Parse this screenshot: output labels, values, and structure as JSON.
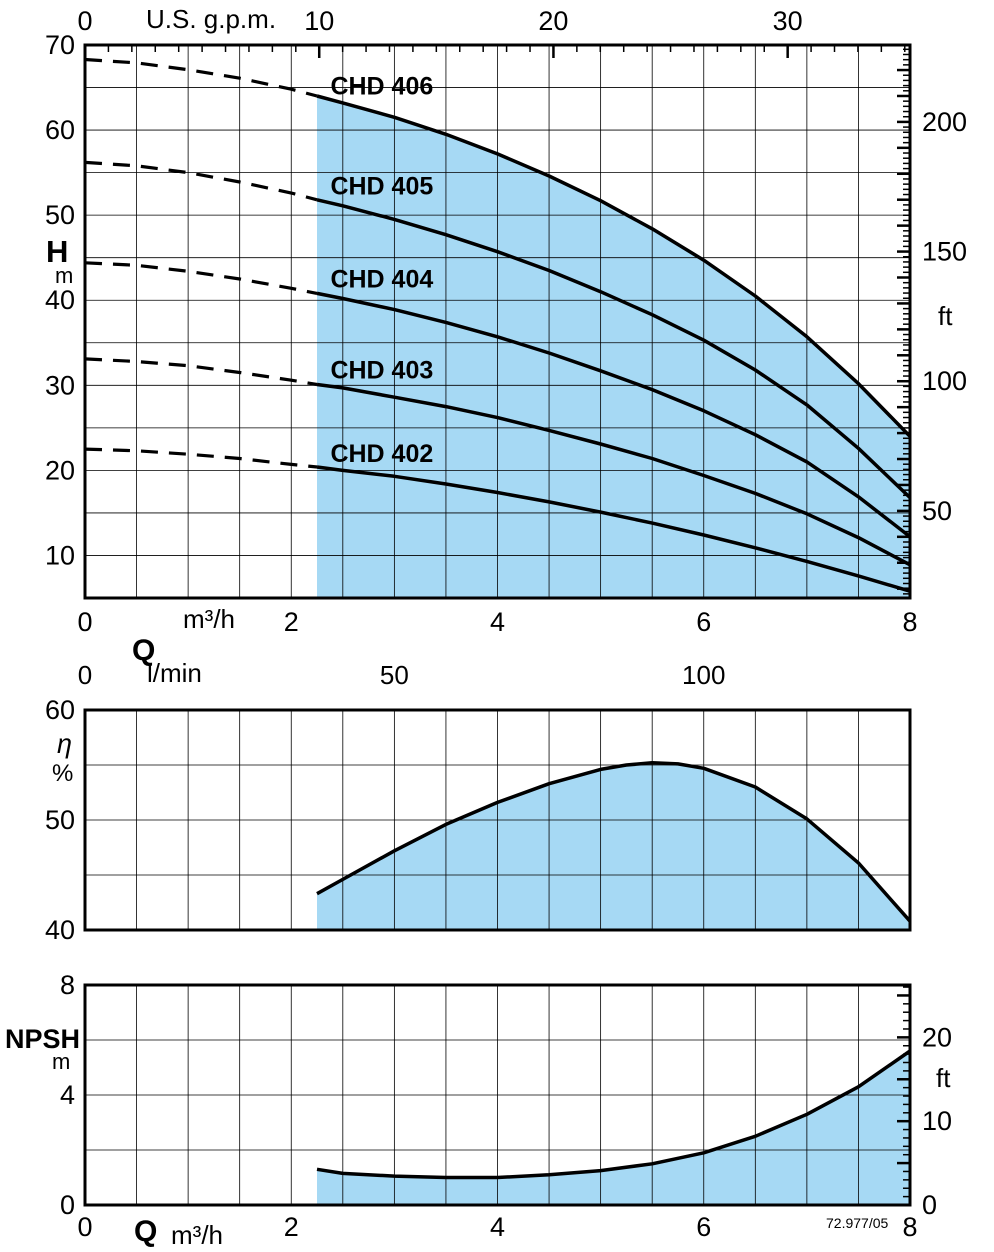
{
  "colors": {
    "fill": "#a6d9f4",
    "line": "#000000"
  },
  "labels": {
    "gpm": "U.S. g.p.m.",
    "head": "H",
    "head_unit": "m",
    "feet": "ft",
    "flow_unit": "m³/h",
    "q": "Q",
    "lmin": "l/min",
    "eta": "η",
    "eta_unit": "%",
    "npsh": "NPSH",
    "npsh_unit": "m",
    "feet2": "ft",
    "q2": "Q",
    "flow_unit2": "m³/h",
    "note": "72.977/05"
  },
  "chart_data": [
    {
      "type": "line",
      "title": "H-Q characteristic curves",
      "xlabel": "Q (m³/h)",
      "ylabel": "H (m)",
      "x": {
        "range": [
          0,
          8
        ],
        "ticks": [
          0,
          2,
          4,
          6,
          8
        ],
        "grid_step": 0.5
      },
      "y": {
        "range": [
          5,
          70
        ],
        "ticks": [
          10,
          20,
          30,
          40,
          50,
          60,
          70
        ],
        "grid_step": 5
      },
      "x_top": {
        "unit": "U.S. g.p.m.",
        "ticks": [
          0,
          10,
          20,
          30
        ],
        "minor_step": 1,
        "major_step": 10,
        "per_m3h": 4.4029
      },
      "x_lmin": {
        "unit": "l/min",
        "ticks": [
          0,
          50,
          100
        ],
        "per_m3h": 16.6667
      },
      "y_right": {
        "unit": "ft",
        "ticks": [
          50,
          100,
          150,
          200
        ],
        "minor_step": 2,
        "major_step": 10,
        "m_per_ft": 0.3048
      },
      "dash_until": 2.25,
      "fill_series": "CHD 406",
      "series": [
        {
          "name": "CHD 406",
          "label_pos": [
            2.38,
            64.2
          ],
          "points": [
            [
              0,
              68.3
            ],
            [
              0.5,
              67.9
            ],
            [
              1,
              67.1
            ],
            [
              1.5,
              66.1
            ],
            [
              2,
              64.8
            ],
            [
              2.25,
              64.0
            ],
            [
              2.5,
              63.2
            ],
            [
              3,
              61.5
            ],
            [
              3.5,
              59.5
            ],
            [
              4,
              57.2
            ],
            [
              4.5,
              54.6
            ],
            [
              5,
              51.7
            ],
            [
              5.5,
              48.4
            ],
            [
              6,
              44.7
            ],
            [
              6.5,
              40.5
            ],
            [
              7,
              35.7
            ],
            [
              7.5,
              30.2
            ],
            [
              8,
              24.0
            ]
          ]
        },
        {
          "name": "CHD 405",
          "label_pos": [
            2.38,
            52.4
          ],
          "points": [
            [
              0,
              56.2
            ],
            [
              0.5,
              55.8
            ],
            [
              1,
              55.0
            ],
            [
              1.5,
              53.9
            ],
            [
              2,
              52.6
            ],
            [
              2.25,
              51.8
            ],
            [
              2.5,
              51.1
            ],
            [
              3,
              49.5
            ],
            [
              3.5,
              47.7
            ],
            [
              4,
              45.7
            ],
            [
              4.5,
              43.5
            ],
            [
              5,
              41.0
            ],
            [
              5.5,
              38.3
            ],
            [
              6,
              35.3
            ],
            [
              6.5,
              31.8
            ],
            [
              7,
              27.7
            ],
            [
              7.5,
              22.6
            ],
            [
              8,
              16.8
            ]
          ]
        },
        {
          "name": "CHD 404",
          "label_pos": [
            2.38,
            41.5
          ],
          "points": [
            [
              0,
              44.4
            ],
            [
              0.5,
              44.1
            ],
            [
              1,
              43.4
            ],
            [
              1.5,
              42.5
            ],
            [
              2,
              41.4
            ],
            [
              2.25,
              40.8
            ],
            [
              2.5,
              40.2
            ],
            [
              3,
              38.9
            ],
            [
              3.5,
              37.4
            ],
            [
              4,
              35.7
            ],
            [
              4.5,
              33.8
            ],
            [
              5,
              31.7
            ],
            [
              5.5,
              29.5
            ],
            [
              6,
              27.0
            ],
            [
              6.5,
              24.2
            ],
            [
              7,
              21.0
            ],
            [
              7.5,
              16.9
            ],
            [
              8,
              12.2
            ]
          ]
        },
        {
          "name": "CHD 403",
          "label_pos": [
            2.38,
            30.8
          ],
          "points": [
            [
              0,
              33.1
            ],
            [
              0.5,
              32.8
            ],
            [
              1,
              32.3
            ],
            [
              1.5,
              31.5
            ],
            [
              2,
              30.6
            ],
            [
              2.25,
              30.1
            ],
            [
              2.5,
              29.7
            ],
            [
              3,
              28.6
            ],
            [
              3.5,
              27.5
            ],
            [
              4,
              26.2
            ],
            [
              4.5,
              24.7
            ],
            [
              5,
              23.1
            ],
            [
              5.5,
              21.4
            ],
            [
              6,
              19.4
            ],
            [
              6.5,
              17.3
            ],
            [
              7,
              14.9
            ],
            [
              7.5,
              12.1
            ],
            [
              8,
              8.9
            ]
          ]
        },
        {
          "name": "CHD 402",
          "label_pos": [
            2.38,
            21.0
          ],
          "points": [
            [
              0,
              22.5
            ],
            [
              0.5,
              22.3
            ],
            [
              1,
              21.9
            ],
            [
              1.5,
              21.4
            ],
            [
              2,
              20.7
            ],
            [
              2.25,
              20.4
            ],
            [
              2.5,
              20.0
            ],
            [
              3,
              19.3
            ],
            [
              3.5,
              18.4
            ],
            [
              4,
              17.4
            ],
            [
              4.5,
              16.3
            ],
            [
              5,
              15.1
            ],
            [
              5.5,
              13.8
            ],
            [
              6,
              12.4
            ],
            [
              6.5,
              10.9
            ],
            [
              7,
              9.3
            ],
            [
              7.5,
              7.6
            ],
            [
              8,
              5.8
            ]
          ]
        }
      ]
    },
    {
      "type": "line",
      "title": "Efficiency curve",
      "xlabel": "Q (m³/h)",
      "ylabel": "η (%)",
      "x": {
        "range": [
          0,
          8
        ],
        "ticks": [],
        "grid_step": 0.5
      },
      "y": {
        "range": [
          40,
          60
        ],
        "ticks": [
          40,
          50,
          60
        ],
        "grid_step": 5
      },
      "fill": true,
      "series": [
        {
          "name": "eta",
          "points": [
            [
              2.25,
              43.3
            ],
            [
              2.5,
              44.6
            ],
            [
              3,
              47.2
            ],
            [
              3.5,
              49.6
            ],
            [
              4,
              51.6
            ],
            [
              4.5,
              53.3
            ],
            [
              5,
              54.6
            ],
            [
              5.25,
              55.0
            ],
            [
              5.5,
              55.2
            ],
            [
              5.75,
              55.1
            ],
            [
              6,
              54.7
            ],
            [
              6.5,
              53.0
            ],
            [
              7,
              50.1
            ],
            [
              7.5,
              46.1
            ],
            [
              8,
              40.8
            ]
          ]
        }
      ]
    },
    {
      "type": "line",
      "title": "NPSH curve",
      "xlabel": "Q (m³/h)",
      "ylabel": "NPSH (m)",
      "x": {
        "range": [
          0,
          8
        ],
        "ticks": [
          0,
          2,
          4,
          6,
          8
        ],
        "grid_step": 0.5
      },
      "y": {
        "range": [
          0,
          8
        ],
        "ticks": [
          0,
          4,
          8
        ],
        "grid_step": 2
      },
      "y_right": {
        "unit": "ft",
        "ticks": [
          0,
          10,
          20
        ],
        "minor_step": 1,
        "major_step": 5,
        "m_per_ft": 0.3048
      },
      "fill": true,
      "series": [
        {
          "name": "NPSH",
          "points": [
            [
              2.25,
              1.3
            ],
            [
              2.5,
              1.15
            ],
            [
              3,
              1.05
            ],
            [
              3.5,
              1.0
            ],
            [
              4,
              1.0
            ],
            [
              4.5,
              1.1
            ],
            [
              5,
              1.25
            ],
            [
              5.5,
              1.5
            ],
            [
              6,
              1.9
            ],
            [
              6.5,
              2.5
            ],
            [
              7,
              3.3
            ],
            [
              7.5,
              4.3
            ],
            [
              8,
              5.6
            ]
          ]
        }
      ]
    }
  ]
}
